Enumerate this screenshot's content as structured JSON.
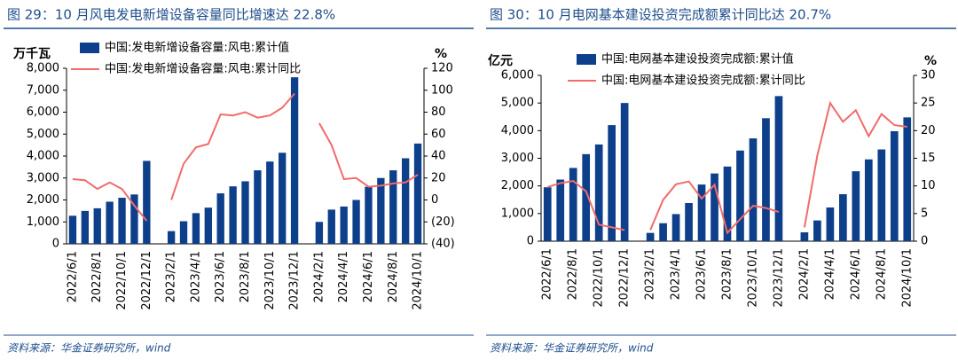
{
  "chart_data": [
    {
      "type": "bar",
      "title": "图 29：10 月风电发电新增设备容量同比增速达 22.8%",
      "source": "资料来源：华金证券研究所，wind",
      "y_label": "万千瓦",
      "y2_label": "%",
      "categories": [
        "2022/6/1",
        null,
        "2022/8/1",
        null,
        "2022/10/1",
        null,
        "2022/12/1",
        null,
        "2023/2/1",
        null,
        "2023/4/1",
        null,
        "2023/6/1",
        null,
        "2023/8/1",
        null,
        "2023/10/1",
        null,
        "2023/12/1",
        null,
        "2024/2/1",
        null,
        "2024/4/1",
        null,
        "2024/6/1",
        null,
        "2024/8/1",
        null,
        "2024/10/1"
      ],
      "series": [
        {
          "name": "中国:发电新增设备容量:风电:累计值",
          "type": "bar",
          "color": "#0d3f8a",
          "axis": "y",
          "values": [
            1280,
            1500,
            1620,
            1920,
            2100,
            2250,
            3780,
            null,
            580,
            1030,
            1400,
            1650,
            2300,
            2620,
            2850,
            3350,
            3750,
            4150,
            7590,
            null,
            1000,
            1560,
            1700,
            2000,
            2600,
            3000,
            3350,
            3900,
            4570
          ]
        },
        {
          "name": "中国:发电新增设备容量:风电:累计同比",
          "type": "line",
          "color": "#f26b6b",
          "axis": "y2",
          "values": [
            19,
            18,
            10,
            16,
            10,
            -5,
            -19,
            null,
            0,
            33,
            48,
            51,
            78,
            77,
            80,
            75,
            77,
            84,
            97,
            null,
            70,
            50,
            19,
            20,
            12,
            13,
            15,
            16,
            23
          ]
        }
      ],
      "ylim": [
        0,
        8000
      ],
      "yticks": [
        0,
        {
          "value": 1000,
          "label": "1,000"
        },
        {
          "value": 2000,
          "label": "2,000"
        },
        {
          "value": 3000,
          "label": "3,000"
        },
        {
          "value": 4000,
          "label": "4,000"
        },
        {
          "value": 5000,
          "label": "5,000"
        },
        {
          "value": 6000,
          "label": "6,000"
        },
        {
          "value": 7000,
          "label": "7,000"
        },
        {
          "value": 8000,
          "label": "8,000"
        }
      ],
      "y2lim": [
        -40,
        120
      ],
      "y2ticks": [
        {
          "value": -40,
          "label": "(40)"
        },
        {
          "value": -20,
          "label": "(20)"
        },
        0,
        20,
        40,
        60,
        80,
        100,
        120
      ]
    },
    {
      "type": "bar",
      "title": "图 30：10 月电网基本建设投资完成额累计同比达 20.7%",
      "source": "资料来源：华金证券研究所，wind",
      "y_label": "亿元",
      "y2_label": "%",
      "categories": [
        "2022/6/1",
        null,
        "2022/8/1",
        null,
        "2022/10/1",
        null,
        "2022/12/1",
        null,
        "2023/2/1",
        null,
        "2023/4/1",
        null,
        "2023/6/1",
        null,
        "2023/8/1",
        null,
        "2023/10/1",
        null,
        "2023/12/1",
        null,
        "2024/2/1",
        null,
        "2024/4/1",
        null,
        "2024/6/1",
        null,
        "2024/8/1",
        null,
        "2024/10/1"
      ],
      "series": [
        {
          "name": "中国:电网基本建设投资完成额:累计值",
          "type": "bar",
          "color": "#0d3f8a",
          "axis": "y",
          "values": [
            1950,
            2230,
            2650,
            3150,
            3500,
            4200,
            5000,
            null,
            300,
            650,
            980,
            1380,
            2050,
            2450,
            2700,
            3280,
            3720,
            4450,
            5250,
            null,
            320,
            750,
            1220,
            1700,
            2530,
            2960,
            3320,
            3980,
            4480
          ]
        },
        {
          "name": "中国:电网基本建设投资完成额:累计同比",
          "type": "line",
          "color": "#f26b6b",
          "axis": "y2",
          "values": [
            9.8,
            10.5,
            10.9,
            9,
            3,
            2.5,
            2,
            null,
            2,
            7.5,
            10.3,
            10.8,
            7.7,
            10.2,
            1.5,
            4,
            6.4,
            6,
            5.3,
            null,
            2.5,
            15.5,
            25,
            21.6,
            23.7,
            19,
            23,
            21,
            20.7
          ]
        }
      ],
      "ylim": [
        0,
        6000
      ],
      "yticks": [
        0,
        {
          "value": 1000,
          "label": "1,000"
        },
        {
          "value": 2000,
          "label": "2,000"
        },
        {
          "value": 3000,
          "label": "3,000"
        },
        {
          "value": 4000,
          "label": "4,000"
        },
        {
          "value": 5000,
          "label": "5,000"
        },
        {
          "value": 6000,
          "label": "6,000"
        }
      ],
      "y2lim": [
        0,
        30
      ],
      "y2ticks": [
        0,
        5,
        10,
        15,
        20,
        25,
        30
      ]
    }
  ]
}
